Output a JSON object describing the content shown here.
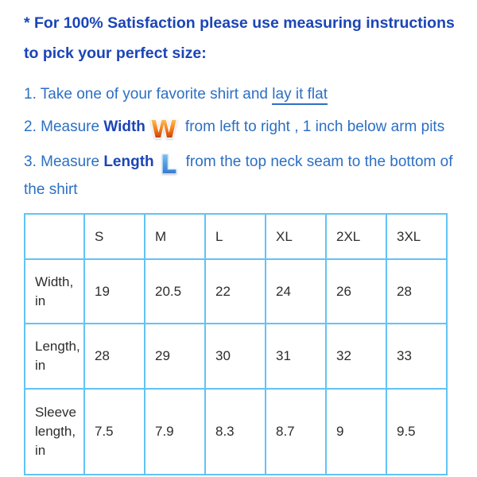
{
  "page": {
    "heading_lines": [
      "* For 100% Satisfaction please use measuring instructions",
      "to pick your perfect size:"
    ],
    "steps": {
      "step1": {
        "prefix": "1. Take one of your favorite shirt and ",
        "underlined": "lay it flat"
      },
      "step2": {
        "prefix": "2. Measure ",
        "bold": "Width",
        "icon_glyph": "W",
        "suffix": "from left to right , 1 inch below arm pits"
      },
      "step3": {
        "prefix": "3. Measure ",
        "bold": "Length",
        "icon_glyph": "L",
        "suffix": "from the top neck seam to the bottom of",
        "continuation": "the shirt"
      }
    }
  },
  "size_table": {
    "col_headers": [
      "",
      "S",
      "M",
      "L",
      "XL",
      "2XL",
      "3XL"
    ],
    "rows": [
      {
        "label": "Width, in",
        "values": [
          "19",
          "20.5",
          "22",
          "24",
          "26",
          "28"
        ]
      },
      {
        "label": "Length, in",
        "values": [
          "28",
          "29",
          "30",
          "31",
          "32",
          "33"
        ]
      },
      {
        "label": "Sleeve length, in",
        "values": [
          "7.5",
          "7.9",
          "8.3",
          "8.7",
          "9",
          "9.5"
        ]
      }
    ]
  },
  "colors": {
    "heading_blue": "#1b45b7",
    "body_blue": "#2c6fc4",
    "table_border_blue": "#62c3f5",
    "table_text": "#2d2d2d",
    "w_icon_top": "#ffd76e",
    "w_icon_mid": "#f58220",
    "w_icon_bottom": "#a81800",
    "l_icon_top": "#8fd4f7",
    "l_icon_mid": "#4f9be0",
    "l_icon_bottom": "#2a66c8"
  }
}
